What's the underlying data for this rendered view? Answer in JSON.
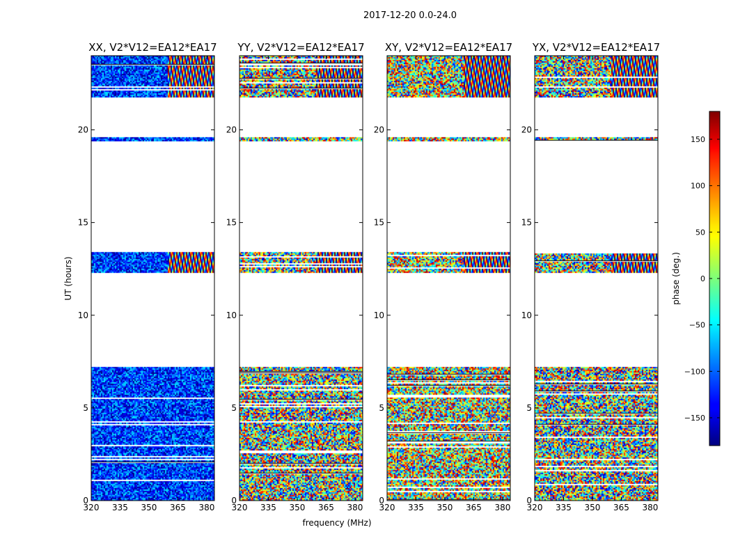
{
  "figure": {
    "suptitle": "2017-12-20 0.0-24.0",
    "xlabel": "frequency (MHz)",
    "ylabel": "UT (hours)",
    "colorbar_label": "phase (deg.)"
  },
  "chart_data": {
    "type": "heatmap",
    "panels": [
      {
        "title": "XX, V2*V12=EA12*EA17",
        "palette": "xx"
      },
      {
        "title": "YY, V2*V12=EA12*EA17",
        "palette": "yy"
      },
      {
        "title": "XY, V2*V12=EA12*EA17",
        "palette": "xy"
      },
      {
        "title": "YX, V2*V12=EA12*EA17",
        "palette": "yx"
      }
    ],
    "xlim": [
      320,
      384
    ],
    "x_ticks": [
      320,
      335,
      350,
      365,
      380
    ],
    "ylim": [
      0,
      24
    ],
    "y_ticks": [
      0,
      5,
      10,
      15,
      20
    ],
    "data_blocks_hours": [
      [
        0.0,
        7.2
      ],
      [
        12.3,
        13.4
      ],
      [
        19.4,
        19.6
      ],
      [
        21.8,
        24.0
      ]
    ],
    "colorbar": {
      "range": [
        -180,
        180
      ],
      "ticks": [
        -150,
        -100,
        -50,
        0,
        50,
        100,
        150
      ],
      "colormap": "jet"
    }
  }
}
